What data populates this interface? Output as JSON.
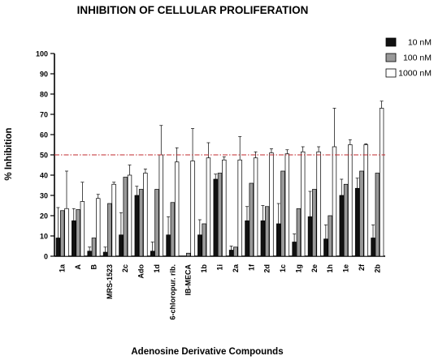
{
  "chart_data": {
    "type": "bar",
    "title": "INHIBITION OF CELLULAR PROLIFERATION",
    "xlabel": "Adenosine Derivative Compounds",
    "ylabel": "% Inhibition",
    "ylim": [
      0,
      100
    ],
    "yticks": [
      0,
      10,
      20,
      30,
      40,
      50,
      60,
      70,
      80,
      90,
      100
    ],
    "grid": false,
    "legend_position": "top-right",
    "reference_line": {
      "y": 50,
      "color": "#c0282d",
      "style": "dash-dot"
    },
    "categories": [
      "1a",
      "A",
      "B",
      "MRS-1523",
      "2c",
      "Ado",
      "1d",
      "6-chloropur. rib.",
      "IB-MECA",
      "1b",
      "1i",
      "2a",
      "1f",
      "2d",
      "1c",
      "1g",
      "2e",
      "1h",
      "1e",
      "2f",
      "2b"
    ],
    "series": [
      {
        "name": "10 nM",
        "color": "#111111",
        "values": [
          9,
          17.5,
          2.5,
          2,
          10.5,
          30,
          2.5,
          10.5,
          0,
          10.5,
          38,
          3,
          17.5,
          17.5,
          16,
          7,
          19.5,
          8.5,
          30,
          33.5,
          9
        ],
        "errors": [
          15,
          6,
          2,
          2.5,
          11,
          4.5,
          4.5,
          9,
          0,
          7.5,
          2.5,
          2,
          7,
          7.5,
          10,
          4,
          12.5,
          7,
          8,
          5,
          6.5
        ]
      },
      {
        "name": "100 nM",
        "color": "#999999",
        "values": [
          22.5,
          23,
          9,
          26,
          39,
          33,
          33,
          26.5,
          1.5,
          16,
          41,
          4.5,
          36,
          24.5,
          42,
          23.5,
          33,
          20,
          35.5,
          42,
          41
        ]
      },
      {
        "name": "1000 nM",
        "color": "#ffffff",
        "values": [
          23.5,
          27,
          28.5,
          35.5,
          40,
          41,
          50,
          46.5,
          47,
          48.5,
          47.5,
          47.5,
          48.5,
          51,
          50.5,
          51.5,
          51.5,
          54,
          55,
          55,
          73
        ],
        "errors": [
          18.5,
          9.5,
          2,
          1,
          5,
          2,
          14.5,
          7,
          16,
          7.5,
          1.5,
          11.5,
          3,
          2,
          2,
          2.5,
          2.5,
          19,
          2.5,
          0.5,
          3.5
        ]
      }
    ]
  }
}
